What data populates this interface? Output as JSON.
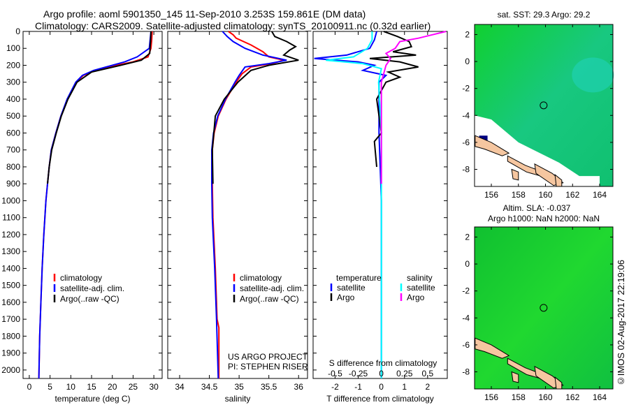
{
  "title_line1": "Argo profile: aoml 5901350_145 11-Sep-2010 3.253S 159.861E (DM data)",
  "title_line2": "Climatology: CARS2009. Satellite-adjusted climatology: synTS_20100911.nc (0.32d earlier)",
  "timestamp": "©IMOS 02-Aug-2017 22:19:06",
  "project_line1": "US ARGO PROJECT",
  "project_line2": "PI: STEPHEN RISER",
  "colors": {
    "clim": "#ff0000",
    "satadj": "#0000ff",
    "argo": "#000000",
    "ssat": "#00ffff",
    "sargo": "#ff00ff"
  },
  "chart_data": [
    {
      "type": "line",
      "xlabel": "temperature (deg C)",
      "xlim": [
        -1.5,
        32
      ],
      "ylim": [
        2050,
        0
      ],
      "xticks": [
        0,
        5,
        10,
        15,
        20,
        25,
        30
      ],
      "yticks": [
        0,
        100,
        200,
        300,
        400,
        500,
        600,
        700,
        800,
        900,
        1000,
        1100,
        1200,
        1300,
        1400,
        1500,
        1600,
        1700,
        1800,
        1900,
        2000
      ],
      "legend": [
        "climatology",
        "satellite-adj. clim.",
        "Argo(..raw -QC)"
      ],
      "series": [
        {
          "name": "climatology",
          "color": "#ff0000",
          "points": [
            [
              0,
              29.6
            ],
            [
              50,
              29.5
            ],
            [
              100,
              29.3
            ],
            [
              150,
              28.6
            ],
            [
              180,
              25
            ],
            [
              200,
              21
            ],
            [
              230,
              16
            ],
            [
              260,
              13
            ],
            [
              300,
              11.3
            ],
            [
              400,
              9.2
            ],
            [
              500,
              7.6
            ],
            [
              600,
              6.4
            ],
            [
              700,
              5.3
            ],
            [
              800,
              4.8
            ],
            [
              900,
              4.4
            ],
            [
              1000,
              4.0
            ],
            [
              1200,
              3.5
            ],
            [
              1400,
              3.1
            ],
            [
              1600,
              2.8
            ],
            [
              1800,
              2.5
            ],
            [
              2050,
              2.3
            ]
          ]
        },
        {
          "name": "satellite-adj. clim.",
          "color": "#0000ff",
          "points": [
            [
              0,
              29.3
            ],
            [
              50,
              29.1
            ],
            [
              100,
              28.9
            ],
            [
              150,
              26
            ],
            [
              180,
              23
            ],
            [
              200,
              20
            ],
            [
              230,
              15.5
            ],
            [
              260,
              12.8
            ],
            [
              300,
              11.2
            ],
            [
              400,
              9.1
            ],
            [
              500,
              7.6
            ],
            [
              600,
              6.4
            ],
            [
              700,
              5.3
            ],
            [
              800,
              4.8
            ],
            [
              900,
              4.4
            ],
            [
              1000,
              4.0
            ],
            [
              1200,
              3.5
            ],
            [
              1400,
              3.1
            ],
            [
              1600,
              2.8
            ],
            [
              1800,
              2.5
            ],
            [
              2050,
              2.3
            ]
          ]
        },
        {
          "name": "Argo(..raw -QC)",
          "color": "#000000",
          "points": [
            [
              0,
              29.3
            ],
            [
              60,
              29.2
            ],
            [
              130,
              29
            ],
            [
              170,
              27
            ],
            [
              200,
              22
            ],
            [
              240,
              15
            ],
            [
              300,
              11.5
            ],
            [
              400,
              9.3
            ],
            [
              500,
              7.7
            ],
            [
              600,
              6.5
            ],
            [
              700,
              5.4
            ],
            [
              800,
              4.8
            ],
            [
              900,
              4.4
            ]
          ]
        }
      ]
    },
    {
      "type": "line",
      "xlabel": "salinity",
      "xlim": [
        33.8,
        36.15
      ],
      "ylim": [
        2050,
        0
      ],
      "xticks": [
        34,
        34.5,
        35,
        35.5,
        36
      ],
      "legend": [
        "climatology",
        "satellite-adj. clim.",
        "Argo(..raw -QC)"
      ],
      "series": [
        {
          "name": "climatology",
          "color": "#ff0000",
          "points": [
            [
              0,
              34.82
            ],
            [
              20,
              34.9
            ],
            [
              40,
              34.95
            ],
            [
              80,
              35.2
            ],
            [
              120,
              35.4
            ],
            [
              150,
              35.5
            ],
            [
              170,
              35.75
            ],
            [
              190,
              35.55
            ],
            [
              210,
              35.2
            ],
            [
              250,
              35.05
            ],
            [
              300,
              34.95
            ],
            [
              400,
              34.78
            ],
            [
              500,
              34.65
            ],
            [
              600,
              34.58
            ],
            [
              700,
              34.55
            ],
            [
              900,
              34.55
            ],
            [
              1100,
              34.56
            ],
            [
              1400,
              34.6
            ],
            [
              1700,
              34.63
            ],
            [
              1750,
              34.66
            ],
            [
              2050,
              34.66
            ]
          ]
        },
        {
          "name": "satellite-adj. clim.",
          "color": "#0000ff",
          "points": [
            [
              0,
              34.72
            ],
            [
              30,
              34.8
            ],
            [
              60,
              34.9
            ],
            [
              100,
              35.1
            ],
            [
              140,
              35.4
            ],
            [
              170,
              35.8
            ],
            [
              190,
              35.5
            ],
            [
              210,
              35.1
            ],
            [
              260,
              35.0
            ],
            [
              300,
              34.93
            ],
            [
              400,
              34.77
            ],
            [
              500,
              34.64
            ],
            [
              600,
              34.57
            ],
            [
              700,
              34.54
            ],
            [
              900,
              34.54
            ],
            [
              1100,
              34.55
            ],
            [
              1400,
              34.59
            ],
            [
              1700,
              34.62
            ],
            [
              2050,
              34.65
            ]
          ]
        },
        {
          "name": "Argo(..raw -QC)",
          "color": "#000000",
          "points": [
            [
              0,
              35.55
            ],
            [
              30,
              35.6
            ],
            [
              60,
              35.8
            ],
            [
              90,
              35.95
            ],
            [
              110,
              35.85
            ],
            [
              140,
              35.75
            ],
            [
              170,
              36.0
            ],
            [
              200,
              35.5
            ],
            [
              230,
              35.2
            ],
            [
              300,
              34.98
            ],
            [
              400,
              34.75
            ],
            [
              500,
              34.6
            ],
            [
              700,
              34.55
            ],
            [
              900,
              34.56
            ]
          ]
        }
      ]
    },
    {
      "type": "line",
      "xlabel": "T difference from climatology",
      "xlim": [
        -2.95,
        2.85
      ],
      "ylim": [
        2050,
        0
      ],
      "xticks": [
        -2,
        -1,
        0,
        1,
        2
      ],
      "s_label": "S difference from climatology",
      "s_ticks": [
        "-0.5",
        "-0.25",
        "0",
        "0.25",
        "0.5"
      ],
      "s_tick_values": [
        -0.5,
        -0.25,
        0,
        0.25,
        0.5
      ],
      "legend_titles": [
        "temperature",
        "salinity"
      ],
      "legend": [
        "satellite",
        "Argo",
        "satellite",
        "Argo"
      ],
      "series": [
        {
          "name": "T satellite",
          "color": "#0000ff",
          "units": "T",
          "points": [
            [
              0,
              -0.2
            ],
            [
              50,
              -0.3
            ],
            [
              100,
              -0.5
            ],
            [
              140,
              -1.5
            ],
            [
              160,
              -2.9
            ],
            [
              180,
              -1.0
            ],
            [
              200,
              -0.3
            ],
            [
              230,
              -0.8
            ],
            [
              260,
              0.2
            ],
            [
              300,
              -0.1
            ],
            [
              400,
              -0.1
            ],
            [
              600,
              -0.1
            ],
            [
              1000,
              0
            ],
            [
              2050,
              0
            ]
          ]
        },
        {
          "name": "T Argo",
          "color": "#000000",
          "units": "T",
          "points": [
            [
              0,
              0.1
            ],
            [
              30,
              0.7
            ],
            [
              60,
              1.2
            ],
            [
              90,
              1.3
            ],
            [
              120,
              0.5
            ],
            [
              140,
              1.5
            ],
            [
              160,
              -0.5
            ],
            [
              180,
              0.8
            ],
            [
              210,
              1.6
            ],
            [
              240,
              0.3
            ],
            [
              270,
              0.8
            ],
            [
              300,
              0.2
            ],
            [
              400,
              -0.2
            ],
            [
              600,
              0
            ],
            [
              650,
              -0.3
            ],
            [
              800,
              -0.2
            ]
          ]
        },
        {
          "name": "S satellite",
          "color": "#00ffff",
          "units": "S",
          "points": [
            [
              0,
              -0.1
            ],
            [
              50,
              -0.1
            ],
            [
              100,
              -0.15
            ],
            [
              150,
              -0.3
            ],
            [
              170,
              -0.6
            ],
            [
              190,
              -0.2
            ],
            [
              220,
              0
            ],
            [
              300,
              -0.03
            ],
            [
              600,
              0
            ],
            [
              2050,
              0
            ]
          ]
        },
        {
          "name": "S Argo",
          "color": "#ff00ff",
          "units": "S",
          "points": [
            [
              0,
              0.7
            ],
            [
              20,
              0.55
            ],
            [
              40,
              0.4
            ],
            [
              60,
              0.2
            ],
            [
              100,
              0.15
            ],
            [
              130,
              0.05
            ],
            [
              160,
              0.1
            ],
            [
              200,
              0.05
            ],
            [
              300,
              0
            ],
            [
              500,
              0
            ],
            [
              900,
              0
            ]
          ]
        }
      ]
    },
    {
      "type": "heatmap",
      "title": "sat. SST: 29.3 Argo: 29.2",
      "lon_ticks": [
        156,
        158,
        160,
        162,
        164
      ],
      "lat_ticks": [
        2,
        0,
        -2,
        -4,
        -6,
        -8
      ],
      "profile_location": [
        159.861,
        -3.253
      ]
    },
    {
      "type": "heatmap",
      "title1": "Altim. SLA: -0.037",
      "title2": "Argo h1000: NaN h2000: NaN",
      "lon_ticks": [
        156,
        158,
        160,
        162,
        164
      ],
      "lat_ticks": [
        2,
        0,
        -2,
        -4,
        -6,
        -8
      ],
      "profile_location": [
        159.861,
        -3.253
      ]
    }
  ]
}
